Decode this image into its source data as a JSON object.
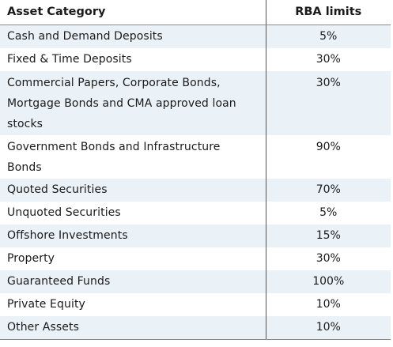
{
  "table": {
    "headers": [
      "Asset Category",
      "RBA limits"
    ],
    "rows": [
      {
        "category": "Cash and Demand Deposits",
        "limit": "5%"
      },
      {
        "category": "Fixed & Time Deposits",
        "limit": "30%"
      },
      {
        "category": "Commercial Papers, Corporate Bonds, Mortgage Bonds and CMA approved loan stocks",
        "limit": "30%"
      },
      {
        "category": "Government Bonds and Infrastructure Bonds",
        "limit": "90%"
      },
      {
        "category": "Quoted Securities",
        "limit": "70%"
      },
      {
        "category": "Unquoted Securities",
        "limit": "5%"
      },
      {
        "category": "Offshore Investments",
        "limit": "15%"
      },
      {
        "category": "Property",
        "limit": "30%"
      },
      {
        "category": "Guaranteed Funds",
        "limit": "100%"
      },
      {
        "category": "Private Equity",
        "limit": "10%"
      },
      {
        "category": "Other Assets",
        "limit": "10%"
      }
    ]
  },
  "colors": {
    "shade": "#eaf2f8",
    "divider": "#555555"
  }
}
